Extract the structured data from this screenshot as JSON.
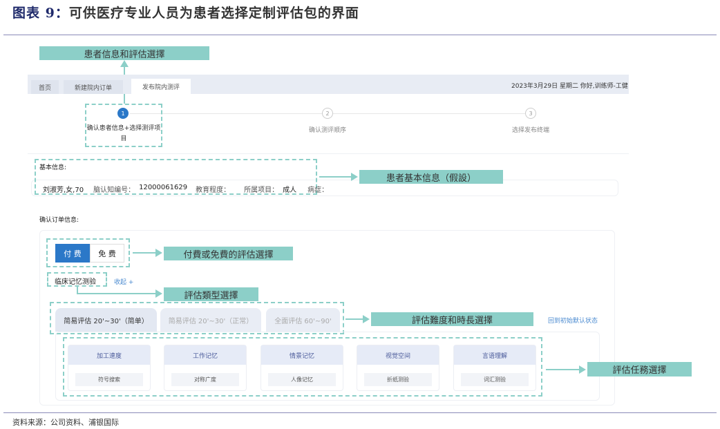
{
  "figure": {
    "number_label": "图表 9：",
    "title": "可供医疗专业人员为患者选择定制评估包的界面",
    "source": "资料来源：公司资料、浦银国际"
  },
  "annotations": {
    "patient_eval": "患者信息和評估選擇",
    "patient_basic": "患者基本信息（假設）",
    "paid_free": "付費或免費的評估選擇",
    "eval_type": "評估類型選擇",
    "difficulty": "評估難度和時長選擇",
    "tasks": "評估任務選擇"
  },
  "colors": {
    "annotation": "#8ccfc8",
    "primary": "#2b78c8",
    "title": "#1f2a6b"
  },
  "app": {
    "tabs": [
      {
        "label": "首页"
      },
      {
        "label": "新建院内订单"
      },
      {
        "label": "发布院内测评",
        "selected": true
      }
    ],
    "header_right": "2023年3月29日 星期二   你好,训练师-工健",
    "steps": [
      {
        "num": "1",
        "label": "确认患者信息+选择测评项目",
        "active": true
      },
      {
        "num": "2",
        "label": "确认测评顺序"
      },
      {
        "num": "3",
        "label": "选择发布终端"
      }
    ],
    "basic_info": {
      "heading": "基本信息:",
      "name": "刘淑芳,女,70",
      "id_label": "脑认知编号：",
      "id_value": "12000061629",
      "edu_label": "教育程度：",
      "project_label": "所属项目：",
      "project_value": "成人",
      "disease_label": "病症："
    },
    "order": {
      "heading": "确认订单信息:",
      "payment": [
        {
          "label": "付 费",
          "selected": true
        },
        {
          "label": "免 费"
        }
      ],
      "test_name": "临床记忆测验",
      "collapse": "收起 +",
      "eval_tabs": [
        {
          "label": "简易评估 20'~30'（简单）",
          "selected": true
        },
        {
          "label": "简易评估 20'~30'（正常）"
        },
        {
          "label": "全面评估 60'~90'"
        }
      ],
      "reset": "回到初始默认状态",
      "categories": [
        {
          "title": "加工速度",
          "task": "符号搜索"
        },
        {
          "title": "工作记忆",
          "task": "对称广度"
        },
        {
          "title": "情景记忆",
          "task": "人像记忆"
        },
        {
          "title": "视觉空间",
          "task": "折纸测验"
        },
        {
          "title": "言语理解",
          "task": "词汇测验"
        }
      ]
    }
  }
}
